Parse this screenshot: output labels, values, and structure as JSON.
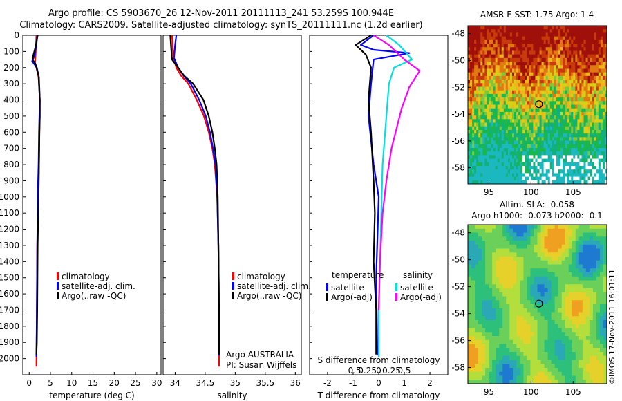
{
  "header": {
    "line1": "Argo profile: CS 5903670_26 12-Nov-2011 20111113_241 53.259S 100.944E",
    "line2": "Climatology: CARS2009. Satellite-adjusted climatology: synTS_20111111.nc (1.2d earlier)"
  },
  "side_text": "©IMOS 17-Nov-2011 16:01:11",
  "colors": {
    "climatology": "#ff0000",
    "satellite": "#0000ff",
    "argo": "#000000",
    "sal_satellite": "#00e0e0",
    "sal_argo": "#ff00ff"
  },
  "chart_data": [
    {
      "type": "line",
      "xlabel": "temperature (deg C)",
      "ylim": [
        2100,
        0
      ],
      "xlim": [
        -1.5,
        31
      ],
      "xticks": [
        0,
        5,
        10,
        15,
        20,
        25,
        30
      ],
      "yticks": [
        0,
        100,
        200,
        300,
        400,
        500,
        600,
        700,
        800,
        900,
        1000,
        1100,
        1200,
        1300,
        1400,
        1500,
        1600,
        1700,
        1800,
        1900,
        2000
      ],
      "legend": [
        "climatology",
        "satellite-adj. clim.",
        "Argo(..raw -QC)"
      ],
      "series": [
        {
          "name": "climatology",
          "color": "#ff0000",
          "x": [
            1.7,
            1.6,
            1.5,
            1.4,
            1.7,
            2.2,
            2.5,
            2.5,
            2.4,
            2.3,
            2.1,
            1.9,
            1.8,
            1.7
          ],
          "y": [
            0,
            60,
            120,
            170,
            200,
            260,
            400,
            500,
            600,
            800,
            1000,
            1300,
            1700,
            2050
          ]
        },
        {
          "name": "satellite-adj. clim.",
          "color": "#0000ff",
          "x": [
            1.9,
            1.7,
            1.2,
            0.7,
            1.8,
            2.3,
            2.5,
            2.4,
            2.3,
            2.2,
            2.0,
            1.9,
            1.8,
            1.7
          ],
          "y": [
            0,
            60,
            130,
            160,
            200,
            260,
            400,
            500,
            600,
            800,
            1000,
            1300,
            1700,
            1990
          ]
        },
        {
          "name": "Argo(..raw -QC)",
          "color": "#000000",
          "x": [
            2.0,
            1.6,
            1.0,
            0.8,
            1.5,
            2.2,
            2.5,
            2.5,
            2.4,
            2.3,
            2.2,
            2.0,
            1.9,
            1.8,
            1.7
          ],
          "y": [
            0,
            60,
            120,
            150,
            180,
            250,
            400,
            500,
            600,
            800,
            1000,
            1300,
            1700,
            1900,
            1975
          ]
        }
      ]
    },
    {
      "type": "line",
      "xlabel": "salinity",
      "ylim": [
        2100,
        0
      ],
      "xlim": [
        33.8,
        36.1
      ],
      "xticks": [
        34,
        34.5,
        35,
        35.5,
        36
      ],
      "legend": [
        "climatology",
        "satellite-adj. clim.",
        "Argo(..raw -QC)"
      ],
      "annotation": [
        "Argo AUSTRALIA",
        "PI: Susan Wijffels"
      ],
      "series": [
        {
          "name": "climatology",
          "color": "#ff0000",
          "x": [
            33.95,
            33.96,
            33.98,
            34.02,
            34.1,
            34.22,
            34.36,
            34.48,
            34.56,
            34.62,
            34.66,
            34.7,
            34.72,
            34.73,
            34.73
          ],
          "y": [
            0,
            80,
            150,
            200,
            250,
            300,
            400,
            500,
            600,
            700,
            800,
            1000,
            1300,
            1700,
            2050
          ]
        },
        {
          "name": "satellite-adj. clim.",
          "color": "#0000ff",
          "x": [
            34.02,
            34.0,
            33.98,
            34.05,
            34.14,
            34.26,
            34.4,
            34.51,
            34.58,
            34.63,
            34.67,
            34.7,
            34.72,
            34.73,
            34.73
          ],
          "y": [
            0,
            60,
            140,
            200,
            250,
            300,
            400,
            500,
            600,
            700,
            800,
            1000,
            1300,
            1700,
            1980
          ]
        },
        {
          "name": "Argo(..raw -QC)",
          "color": "#000000",
          "x": [
            33.92,
            33.93,
            33.95,
            34.05,
            34.15,
            34.3,
            34.47,
            34.56,
            34.62,
            34.66,
            34.69,
            34.71,
            34.72,
            34.73,
            34.73
          ],
          "y": [
            0,
            60,
            150,
            200,
            250,
            300,
            400,
            500,
            600,
            700,
            800,
            1000,
            1300,
            1700,
            1975
          ]
        }
      ]
    },
    {
      "type": "line",
      "xlabel": "T difference from climatology",
      "x2label": "S difference from climatology",
      "ylim": [
        2100,
        0
      ],
      "xlim": [
        -2.7,
        2.7
      ],
      "xticks": [
        -2,
        -1,
        0,
        1,
        2
      ],
      "x2ticks": [
        "-0.5",
        "-0.25",
        "0",
        "0.25",
        "0.5"
      ],
      "legend_groups": [
        "temperature",
        "salinity"
      ],
      "legend": [
        "satellite",
        "Argo(-adj)",
        "satellite",
        "Argo(-adj)"
      ],
      "series": [
        {
          "name": "temperature satellite",
          "color": "#0000ff",
          "x": [
            -0.2,
            -0.7,
            -0.2,
            1.2,
            -0.2,
            -0.3,
            -0.4,
            -0.2,
            0.0,
            -0.1,
            -0.05
          ],
          "y": [
            0,
            60,
            90,
            110,
            150,
            300,
            500,
            800,
            1000,
            1500,
            1980
          ]
        },
        {
          "name": "temperature Argo(-adj)",
          "color": "#000000",
          "x": [
            -0.3,
            -0.9,
            -0.5,
            -0.3,
            -0.4,
            -0.3,
            -0.2,
            -0.15,
            -0.2,
            -0.1,
            -0.1
          ],
          "y": [
            0,
            60,
            120,
            200,
            400,
            600,
            900,
            1100,
            1400,
            1700,
            1975
          ]
        },
        {
          "name": "salinity satellite",
          "color": "#00e0e0",
          "x": [
            0.3,
            0.8,
            1.3,
            0.6,
            0.4,
            0.3,
            0.15,
            0.1,
            0.05,
            0.0,
            0.0
          ],
          "y": [
            0,
            60,
            150,
            200,
            300,
            500,
            800,
            1100,
            1400,
            1700,
            1990
          ]
        },
        {
          "name": "salinity Argo(-adj)",
          "color": "#ff00ff",
          "x": [
            -0.2,
            0.4,
            1.0,
            1.6,
            1.2,
            0.9,
            0.5,
            0.3,
            0.15,
            0.05,
            0.0
          ],
          "y": [
            0,
            60,
            150,
            220,
            320,
            450,
            700,
            900,
            1100,
            1400,
            1700
          ]
        }
      ]
    },
    {
      "type": "heatmap",
      "title": "AMSR-E SST: 1.75 Argo: 1.4",
      "xlim": [
        92.5,
        109
      ],
      "ylim": [
        -59.2,
        -47.4
      ],
      "xticks": [
        95,
        100,
        105
      ],
      "yticks": [
        -48,
        -50,
        -52,
        -54,
        -56,
        -58
      ],
      "marker": {
        "lon": 100.944,
        "lat": -53.259
      }
    },
    {
      "type": "heatmap",
      "title": "Altim. SLA: -0.058",
      "subtitle": "Argo h1000: -0.073 h2000: -0.1",
      "xlim": [
        92.5,
        109
      ],
      "ylim": [
        -59.2,
        -47.4
      ],
      "xticks": [
        95,
        100,
        105
      ],
      "yticks": [
        -48,
        -50,
        -52,
        -54,
        -56,
        -58
      ],
      "marker": {
        "lon": 100.944,
        "lat": -53.259
      }
    }
  ]
}
